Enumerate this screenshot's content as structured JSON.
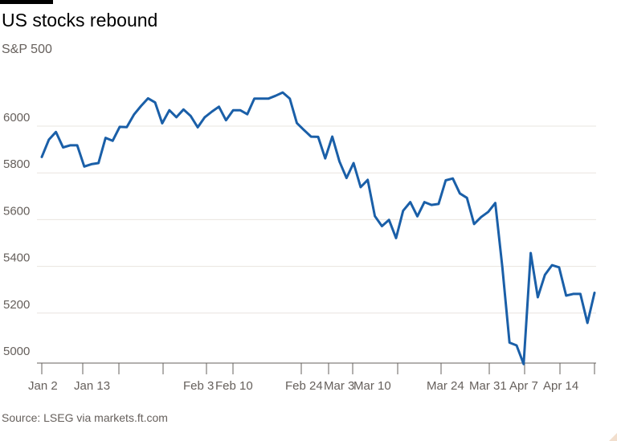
{
  "title": "US stocks rebound",
  "subtitle": "S&P 500",
  "source": "Source: LSEG via markets.ft.com",
  "colors": {
    "line": "#1a5fa8",
    "grid": "#e9e4df",
    "axis": "#66605c",
    "text": "#66605c"
  },
  "chart_data": {
    "type": "line",
    "title": "US stocks rebound",
    "subtitle": "S&P 500",
    "x_tick_labels": [
      "Jan 2",
      "Jan 13",
      "Feb 3",
      "Feb 10",
      "Feb 24",
      "Mar 3",
      "Mar 10",
      "Mar 24",
      "Mar 31",
      "Apr 7",
      "Apr 14"
    ],
    "y_ticks": [
      5000,
      5200,
      5400,
      5600,
      5800,
      6000
    ],
    "ylim": [
      4980,
      6160
    ],
    "grid": true,
    "series": [
      {
        "values": [
          5868,
          5942,
          5975,
          5909,
          5918,
          5918,
          5827,
          5837,
          5842,
          5950,
          5937,
          5997,
          5996,
          6049,
          6086,
          6119,
          6101,
          6012,
          6068,
          6038,
          6071,
          6044,
          5995,
          6038,
          6062,
          6083,
          6025,
          6068,
          6068,
          6051,
          6118,
          6118,
          6118,
          6130,
          6144,
          6118,
          6013,
          5983,
          5955,
          5954,
          5862,
          5955,
          5849,
          5778,
          5842,
          5739,
          5770,
          5615,
          5572,
          5599,
          5521,
          5638,
          5675,
          5614,
          5675,
          5663,
          5667,
          5768,
          5776,
          5712,
          5693,
          5581,
          5611,
          5633,
          5671,
          5396,
          5074,
          5062,
          4982,
          5457,
          5268,
          5364,
          5405,
          5396,
          5275,
          5282,
          5282,
          5158,
          5287
        ]
      }
    ]
  }
}
